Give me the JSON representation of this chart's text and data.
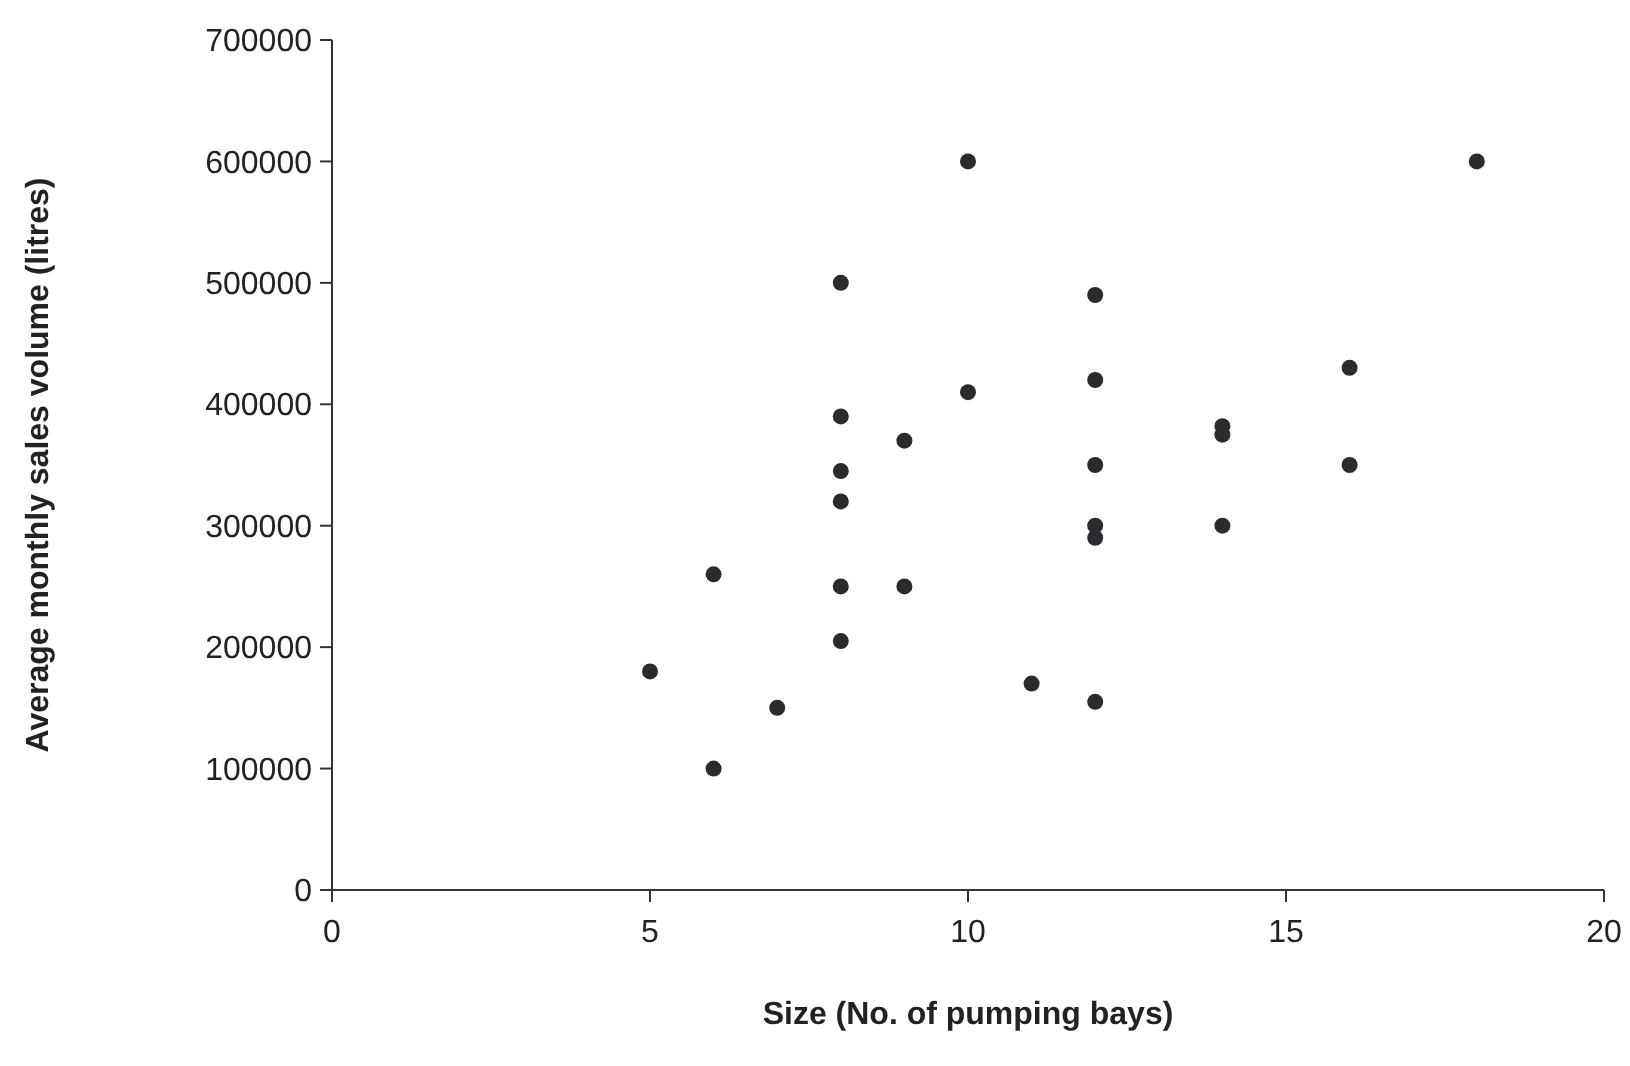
{
  "chart_data": {
    "type": "scatter",
    "xlabel": "Size (No. of pumping bays)",
    "ylabel": "Average monthly sales volume (litres)",
    "x": [
      5,
      6,
      6,
      7,
      8,
      8,
      8,
      8,
      8,
      8,
      9,
      9,
      10,
      10,
      11,
      12,
      12,
      12,
      12,
      12,
      12,
      14,
      14,
      14,
      16,
      16,
      18
    ],
    "series": [
      {
        "color": "#2b2b2f",
        "values": [
          180000,
          260000,
          100000,
          150000,
          500000,
          390000,
          345000,
          320000,
          250000,
          205000,
          370000,
          250000,
          600000,
          410000,
          170000,
          490000,
          420000,
          350000,
          300000,
          290000,
          155000,
          382000,
          375000,
          300000,
          430000,
          350000,
          600000
        ]
      }
    ],
    "xlim": [
      0,
      20
    ],
    "xticks": [
      0,
      5,
      10,
      15,
      20
    ],
    "ylim": [
      0,
      700000
    ],
    "yticks": [
      0,
      100000,
      200000,
      300000,
      400000,
      500000,
      600000,
      700000
    ],
    "marker": "circle",
    "grid": false
  }
}
